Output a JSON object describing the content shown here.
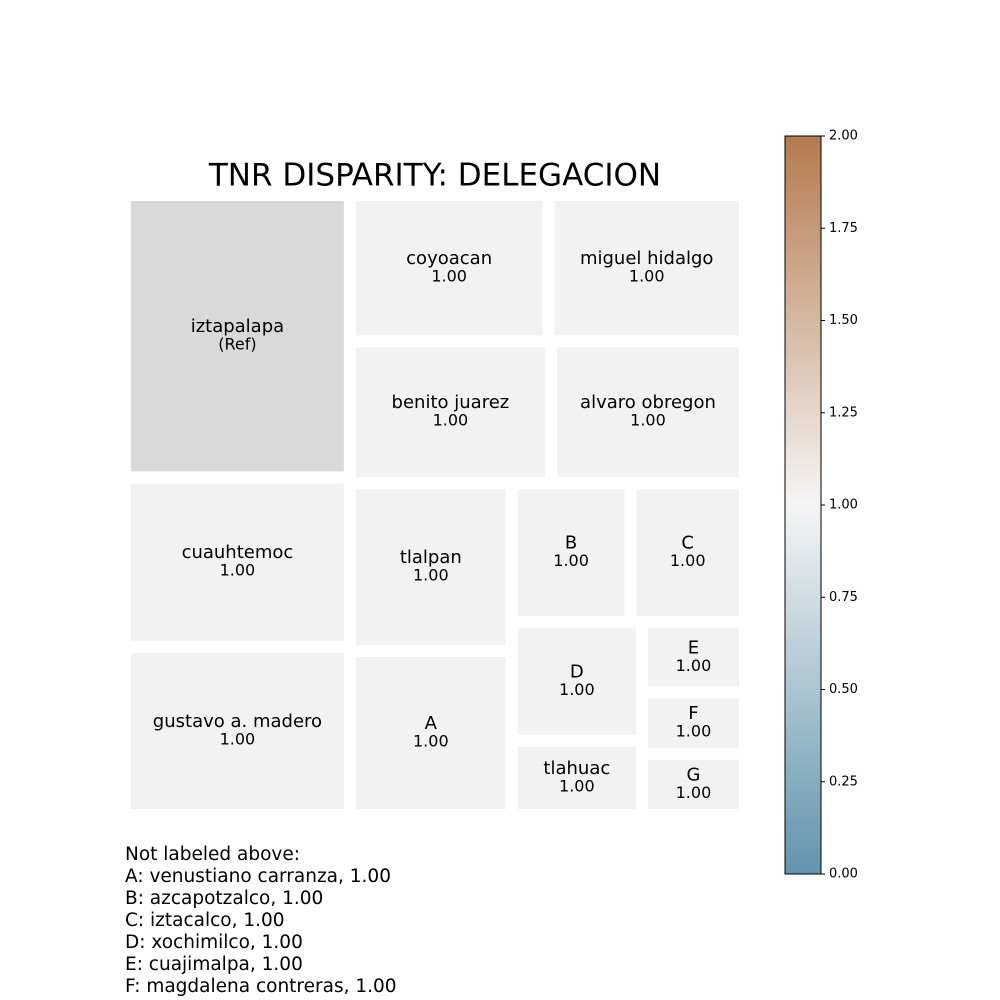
{
  "chart_data": {
    "type": "treemap",
    "title": "TNR DISPARITY: DELEGACION",
    "categories": [
      "iztapalapa",
      "cuauhtemoc",
      "gustavo a. madero",
      "coyoacan",
      "miguel hidalgo",
      "benito juarez",
      "alvaro obregon",
      "tlalpan",
      "A",
      "B",
      "C",
      "D",
      "tlahuac",
      "E",
      "F",
      "G"
    ],
    "sizes": [
      63168,
      37856,
      37632,
      28908,
      28616,
      28341,
      27354,
      27048,
      26404,
      16402,
      15846,
      15340,
      9620,
      7210,
      6283,
      6283
    ],
    "values": [
      null,
      1,
      1,
      1,
      1,
      1,
      1,
      1,
      1,
      1,
      1,
      1,
      1,
      1,
      1,
      1
    ],
    "value_labels": [
      "(Ref)",
      "1.00",
      "1.00",
      "1.00",
      "1.00",
      "1.00",
      "1.00",
      "1.00",
      "1.00",
      "1.00",
      "1.00",
      "1.00",
      "1.00",
      "1.00",
      "1.00",
      "1.00"
    ],
    "colors": [
      "#d9d9d9",
      "#f2f2f2",
      "#f2f2f2",
      "#f2f2f2",
      "#f2f2f2",
      "#f2f2f2",
      "#f2f2f2",
      "#f2f2f2",
      "#f2f2f2",
      "#f2f2f2",
      "#f2f2f2",
      "#f2f2f2",
      "#f2f2f2",
      "#f2f2f2",
      "#f2f2f2",
      "#f2f2f2"
    ],
    "colorbar": {
      "lim": [
        0,
        2
      ],
      "colors": [
        "#6194ad",
        "#f5f5f5",
        "#b57a4e"
      ],
      "ticks": [
        {
          "value": 0,
          "label": "0.00"
        },
        {
          "value": 0.25,
          "label": "0.25"
        },
        {
          "value": 0.5,
          "label": "0.50"
        },
        {
          "value": 0.75,
          "label": "0.75"
        },
        {
          "value": 1,
          "label": "1.00"
        },
        {
          "value": 1.25,
          "label": "1.25"
        },
        {
          "value": 1.5,
          "label": "1.50"
        },
        {
          "value": 1.75,
          "label": "1.75"
        },
        {
          "value": 2,
          "label": "2.00"
        }
      ]
    },
    "footnote": [
      "Not labeled above:",
      "A: venustiano carranza, 1.00",
      "B: azcapotzalco, 1.00",
      "C: iztacalco, 1.00",
      "D: xochimilco, 1.00",
      "E: cuajimalpa, 1.00",
      "F: magdalena contreras, 1.00"
    ]
  }
}
